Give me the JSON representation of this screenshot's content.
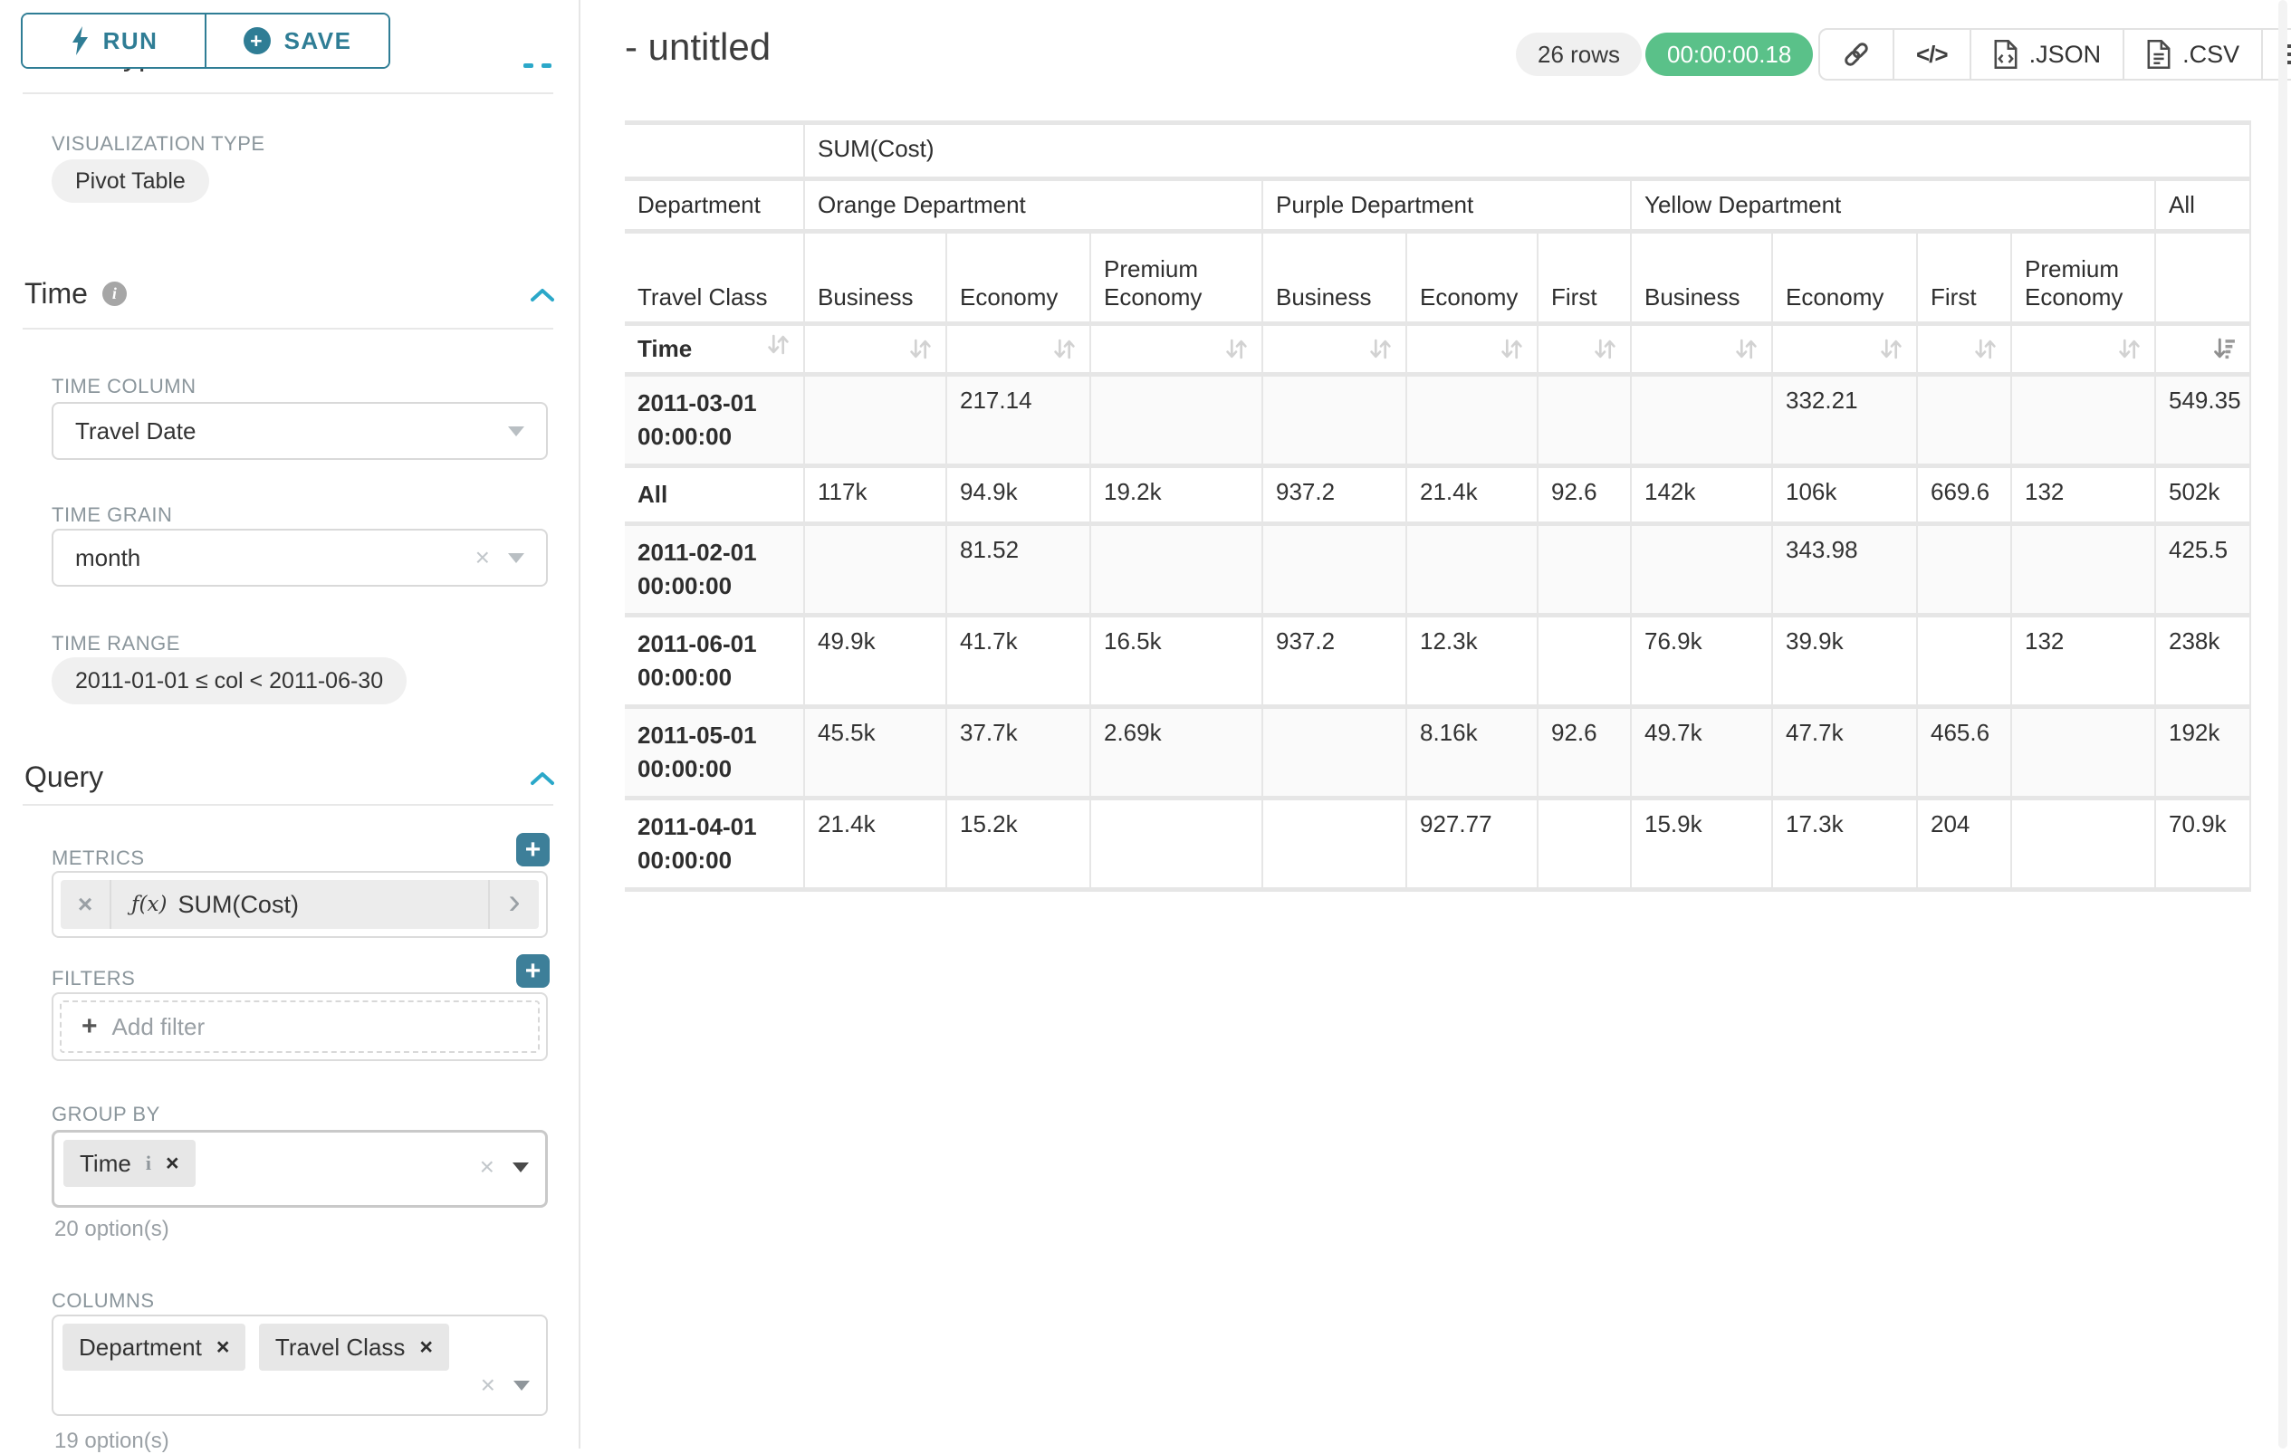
{
  "sidebar": {
    "run_label": "RUN",
    "save_label": "SAVE",
    "clipped_section_title": "Chart Type",
    "viz": {
      "label": "VISUALIZATION TYPE",
      "value": "Pivot Table"
    },
    "time": {
      "title": "Time",
      "column_label": "TIME COLUMN",
      "column_value": "Travel Date",
      "grain_label": "TIME GRAIN",
      "grain_value": "month",
      "range_label": "TIME RANGE",
      "range_value": "2011-01-01 ≤ col < 2011-06-30"
    },
    "query": {
      "title": "Query",
      "metrics_label": "METRICS",
      "metric_fx": "ƒ(x)",
      "metric_value": "SUM(Cost)",
      "filters_label": "FILTERS",
      "add_filter": "Add filter",
      "group_by_label": "GROUP BY",
      "group_by_chips": [
        "Time"
      ],
      "group_by_hint": "20 option(s)",
      "columns_label": "COLUMNS",
      "columns_chips": [
        "Department",
        "Travel Class"
      ],
      "columns_hint": "19 option(s)"
    }
  },
  "header": {
    "title": "- untitled",
    "row_count": "26 rows",
    "timer": "00:00:00.18",
    "toolbar": {
      "json_label": ".JSON",
      "csv_label": ".CSV"
    }
  },
  "colors": {
    "accent_teal": "#2f7d95",
    "bright_blue": "#2ba8c9",
    "success_green": "#5ac189",
    "label_gray": "#8b969c"
  },
  "pivot_table": {
    "metric_header": "SUM(Cost)",
    "row_dim_label": "Department",
    "row_dim2_label": "Travel Class",
    "time_label": "Time",
    "col_groups": [
      {
        "name": "Orange Department",
        "span": 3
      },
      {
        "name": "Purple Department",
        "span": 3
      },
      {
        "name": "Yellow Department",
        "span": 4
      },
      {
        "name": "All",
        "span": 1
      }
    ],
    "col_headers": [
      "Business",
      "Economy",
      "Premium Economy",
      "Business",
      "Economy",
      "First",
      "Business",
      "Economy",
      "First",
      "Premium Economy"
    ],
    "rows": [
      {
        "label": "2011-03-01 00:00:00",
        "values": [
          "",
          "217.14",
          "",
          "",
          "",
          "",
          "",
          "332.21",
          "",
          "",
          "549.35"
        ]
      },
      {
        "label": "All",
        "values": [
          "117k",
          "94.9k",
          "19.2k",
          "937.2",
          "21.4k",
          "92.6",
          "142k",
          "106k",
          "669.6",
          "132",
          "502k"
        ]
      },
      {
        "label": "2011-02-01 00:00:00",
        "values": [
          "",
          "81.52",
          "",
          "",
          "",
          "",
          "",
          "343.98",
          "",
          "",
          "425.5"
        ]
      },
      {
        "label": "2011-06-01 00:00:00",
        "values": [
          "49.9k",
          "41.7k",
          "16.5k",
          "937.2",
          "12.3k",
          "",
          "76.9k",
          "39.9k",
          "",
          "132",
          "238k"
        ]
      },
      {
        "label": "2011-05-01 00:00:00",
        "values": [
          "45.5k",
          "37.7k",
          "2.69k",
          "",
          "8.16k",
          "92.6",
          "49.7k",
          "47.7k",
          "465.6",
          "",
          "192k"
        ]
      },
      {
        "label": "2011-04-01 00:00:00",
        "values": [
          "21.4k",
          "15.2k",
          "",
          "",
          "927.77",
          "",
          "15.9k",
          "17.3k",
          "204",
          "",
          "70.9k"
        ]
      }
    ]
  }
}
